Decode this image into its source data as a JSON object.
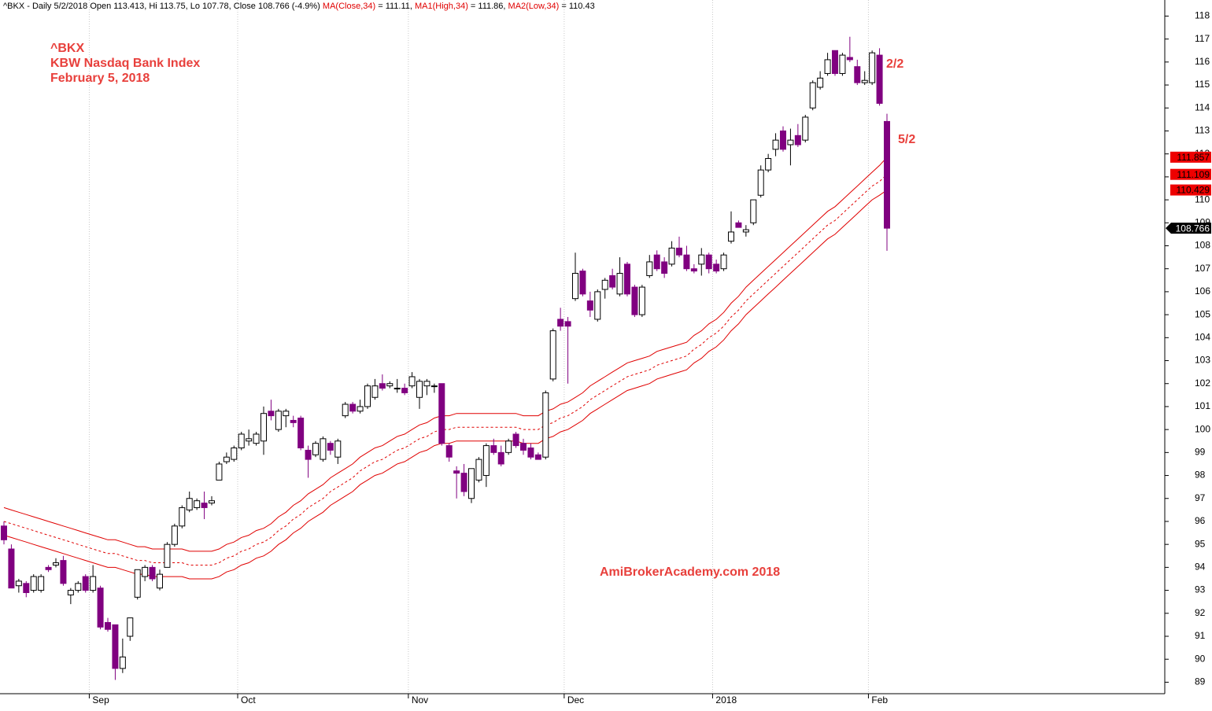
{
  "chart_data": {
    "type": "candlestick",
    "header": [
      {
        "text": "^BKX - Daily 5/2/2018 Open 113.413, Hi 113.75, Lo 107.78, Close 108.766 (-4.9%) ",
        "color": "#000000"
      },
      {
        "text": "MA(Close,34)",
        "color": "#e00000"
      },
      {
        "text": " = 111.11, ",
        "color": "#000000"
      },
      {
        "text": "MA1(High,34)",
        "color": "#e00000"
      },
      {
        "text": " = 111.86, ",
        "color": "#000000"
      },
      {
        "text": "MA2(Low,34)",
        "color": "#e00000"
      },
      {
        "text": " = 110.43",
        "color": "#000000"
      }
    ],
    "annotations": [
      "^BKX",
      "KBW Nasdaq Bank Index",
      "February 5, 2018",
      "2/2",
      "5/2",
      "AmiBrokerAcademy.com  2018"
    ],
    "categories": [
      null,
      null,
      null,
      null,
      null,
      null,
      null,
      null,
      null,
      null,
      null,
      null,
      "Sep",
      null,
      null,
      null,
      null,
      null,
      null,
      null,
      null,
      null,
      null,
      null,
      null,
      null,
      null,
      null,
      null,
      null,
      null,
      null,
      "Oct",
      null,
      null,
      null,
      null,
      null,
      null,
      null,
      null,
      null,
      null,
      null,
      null,
      null,
      null,
      null,
      null,
      null,
      null,
      null,
      null,
      null,
      null,
      "Nov",
      null,
      null,
      null,
      null,
      null,
      null,
      null,
      null,
      null,
      null,
      null,
      null,
      null,
      null,
      null,
      null,
      null,
      null,
      null,
      null,
      "Dec",
      null,
      null,
      null,
      null,
      null,
      null,
      null,
      null,
      null,
      null,
      null,
      null,
      null,
      null,
      null,
      null,
      null,
      null,
      null,
      "2018",
      null,
      null,
      null,
      null,
      null,
      null,
      null,
      null,
      null,
      null,
      null,
      null,
      null,
      null,
      null,
      null,
      null,
      null,
      null,
      null,
      "Feb",
      null,
      null
    ],
    "open": [
      95.8,
      94.8,
      93.2,
      93.3,
      93.0,
      93.0,
      94.0,
      94.1,
      94.3,
      92.8,
      93.0,
      93.6,
      93.0,
      93.1,
      91.6,
      91.5,
      89.6,
      91.0,
      92.7,
      93.6,
      94.0,
      93.1,
      94.0,
      95.0,
      95.8,
      96.5,
      96.6,
      96.8,
      96.8,
      97.8,
      98.6,
      98.7,
      99.2,
      99.5,
      99.4,
      99.5,
      100.8,
      100.0,
      100.6,
      100.4,
      100.5,
      99.1,
      98.9,
      98.7,
      99.4,
      98.8,
      100.6,
      101.1,
      100.8,
      101.0,
      101.4,
      102.0,
      101.9,
      101.8,
      101.8,
      101.9,
      101.4,
      101.9,
      101.9,
      102.0,
      99.3,
      98.2,
      98.1,
      97.0,
      97.8,
      98.0,
      99.3,
      99.0,
      99.0,
      99.8,
      99.4,
      99.2,
      98.9,
      98.8,
      102.2,
      104.8,
      104.7,
      105.7,
      106.9,
      105.6,
      104.8,
      106.1,
      106.7,
      105.9,
      107.2,
      106.2,
      105.0,
      106.7,
      107.6,
      107.3,
      107.2,
      107.9,
      107.6,
      107.0,
      107.2,
      107.6,
      107.2,
      107.0,
      108.2,
      109.0,
      108.6,
      109.0,
      110.2,
      111.3,
      112.2,
      113.0,
      112.4,
      112.8,
      112.6,
      114.0,
      114.9,
      115.5,
      116.5,
      115.5,
      116.2,
      115.8,
      115.1,
      115.1,
      116.3,
      113.413
    ],
    "high": [
      96.0,
      95.0,
      93.5,
      93.4,
      93.7,
      93.7,
      94.1,
      94.4,
      94.5,
      93.1,
      93.4,
      93.7,
      94.1,
      93.2,
      91.8,
      91.5,
      90.9,
      91.8,
      93.9,
      94.1,
      94.1,
      93.9,
      95.1,
      95.9,
      96.7,
      97.3,
      97.0,
      97.3,
      97.1,
      98.6,
      99.0,
      99.3,
      99.9,
      100.0,
      99.9,
      101.0,
      101.3,
      100.9,
      100.9,
      100.6,
      100.6,
      99.3,
      99.5,
      99.7,
      99.5,
      99.6,
      101.2,
      101.2,
      101.3,
      102.0,
      102.2,
      102.4,
      102.1,
      102.2,
      102.0,
      102.5,
      102.2,
      102.2,
      102.0,
      102.0,
      99.4,
      98.4,
      98.5,
      98.3,
      98.8,
      99.4,
      99.6,
      99.3,
      99.6,
      99.9,
      99.6,
      99.4,
      99.0,
      101.7,
      104.4,
      105.3,
      104.9,
      107.7,
      107.0,
      106.0,
      106.1,
      106.6,
      107.0,
      107.5,
      107.3,
      106.3,
      106.3,
      107.6,
      107.8,
      107.5,
      108.2,
      108.4,
      108.0,
      107.2,
      107.9,
      107.7,
      107.4,
      107.7,
      109.5,
      109.1,
      108.9,
      110.0,
      111.5,
      112.0,
      112.9,
      113.2,
      113.1,
      113.3,
      113.7,
      115.2,
      115.6,
      116.4,
      116.5,
      116.4,
      117.1,
      116.1,
      115.6,
      116.5,
      116.6,
      113.75
    ],
    "low": [
      95.0,
      93.1,
      92.9,
      92.7,
      92.9,
      92.9,
      93.8,
      94.0,
      93.2,
      92.4,
      92.9,
      92.9,
      92.9,
      91.3,
      91.2,
      89.1,
      89.4,
      90.8,
      92.6,
      93.4,
      93.4,
      93.0,
      94.0,
      94.9,
      95.7,
      96.4,
      96.5,
      96.1,
      96.7,
      97.8,
      98.5,
      98.6,
      99.1,
      99.3,
      99.3,
      98.9,
      100.4,
      99.9,
      100.1,
      100.1,
      99.1,
      97.9,
      98.8,
      98.6,
      98.9,
      98.5,
      100.5,
      100.7,
      100.7,
      100.9,
      101.3,
      101.7,
      101.8,
      101.6,
      101.5,
      101.8,
      100.9,
      101.5,
      101.6,
      99.3,
      98.6,
      97.0,
      97.1,
      96.8,
      97.7,
      97.5,
      98.9,
      98.4,
      98.9,
      99.2,
      98.9,
      98.7,
      98.7,
      98.7,
      102.1,
      104.3,
      102.0,
      105.6,
      105.8,
      104.9,
      104.7,
      105.7,
      106.1,
      105.8,
      105.8,
      104.9,
      104.9,
      106.6,
      106.9,
      106.6,
      107.1,
      107.5,
      106.9,
      106.8,
      106.7,
      106.8,
      106.8,
      106.9,
      108.1,
      108.8,
      108.4,
      108.9,
      110.1,
      111.2,
      111.9,
      112.1,
      111.5,
      112.3,
      112.5,
      113.9,
      114.8,
      115.4,
      115.4,
      115.4,
      116.0,
      115.0,
      115.0,
      115.0,
      114.1,
      107.78
    ],
    "close": [
      95.2,
      93.1,
      93.4,
      92.9,
      93.6,
      93.6,
      93.9,
      94.2,
      93.3,
      93.0,
      93.3,
      93.0,
      93.6,
      91.4,
      91.3,
      89.6,
      90.1,
      91.8,
      93.9,
      94.0,
      93.5,
      93.7,
      95.0,
      95.8,
      96.6,
      97.0,
      96.9,
      96.6,
      96.9,
      98.5,
      98.8,
      99.2,
      99.8,
      99.6,
      99.8,
      100.7,
      100.6,
      100.8,
      100.8,
      100.3,
      99.2,
      98.7,
      99.4,
      99.6,
      99.1,
      99.5,
      101.1,
      100.8,
      101.0,
      101.9,
      101.9,
      101.8,
      102.0,
      101.8,
      101.6,
      102.3,
      102.1,
      102.1,
      101.9,
      99.4,
      98.8,
      98.1,
      97.3,
      98.3,
      98.7,
      99.3,
      99.0,
      98.5,
      99.5,
      99.3,
      99.1,
      98.8,
      98.7,
      101.6,
      104.3,
      104.5,
      104.5,
      106.8,
      105.9,
      105.2,
      106.0,
      106.5,
      106.2,
      106.8,
      105.9,
      105.0,
      106.2,
      107.3,
      107.0,
      106.8,
      107.9,
      107.6,
      107.0,
      106.9,
      107.6,
      107.0,
      106.9,
      107.6,
      108.6,
      108.8,
      108.7,
      110.0,
      111.3,
      111.8,
      112.6,
      112.2,
      112.6,
      112.4,
      113.6,
      115.1,
      115.3,
      116.1,
      115.5,
      116.3,
      116.1,
      115.1,
      115.2,
      116.4,
      114.2,
      108.766
    ],
    "up_color": "#ffffff",
    "down_color": "#800080",
    "close_label": "108.766",
    "series": [
      {
        "name": "MA1(High,34)",
        "color": "#e00000",
        "dashed": false,
        "last_label": "111.857",
        "values": [
          96.6,
          96.5,
          96.4,
          96.3,
          96.2,
          96.1,
          96.0,
          95.9,
          95.8,
          95.7,
          95.6,
          95.5,
          95.4,
          95.3,
          95.2,
          95.2,
          95.1,
          95.0,
          94.9,
          94.9,
          94.8,
          94.8,
          94.8,
          94.8,
          94.8,
          94.7,
          94.7,
          94.7,
          94.7,
          94.8,
          95.0,
          95.1,
          95.3,
          95.4,
          95.6,
          95.7,
          95.9,
          96.2,
          96.4,
          96.7,
          96.9,
          97.2,
          97.4,
          97.6,
          97.9,
          98.1,
          98.3,
          98.5,
          98.8,
          99.0,
          99.2,
          99.3,
          99.5,
          99.7,
          99.8,
          100.0,
          100.2,
          100.3,
          100.5,
          100.6,
          100.6,
          100.7,
          100.7,
          100.7,
          100.7,
          100.7,
          100.7,
          100.7,
          100.7,
          100.7,
          100.6,
          100.6,
          100.6,
          100.8,
          100.9,
          101.1,
          101.2,
          101.4,
          101.6,
          101.9,
          102.1,
          102.3,
          102.5,
          102.7,
          102.9,
          103.0,
          103.1,
          103.2,
          103.4,
          103.5,
          103.6,
          103.7,
          103.8,
          104.1,
          104.3,
          104.6,
          104.8,
          105.1,
          105.5,
          105.8,
          106.2,
          106.5,
          106.8,
          107.1,
          107.4,
          107.7,
          108.0,
          108.3,
          108.6,
          108.9,
          109.2,
          109.5,
          109.7,
          110.0,
          110.3,
          110.6,
          110.9,
          111.2,
          111.5,
          111.857
        ]
      },
      {
        "name": "MA(Close,34)",
        "color": "#e00000",
        "dashed": true,
        "last_label": "111.109",
        "values": [
          96.0,
          95.9,
          95.8,
          95.7,
          95.6,
          95.5,
          95.4,
          95.3,
          95.2,
          95.1,
          95.0,
          94.9,
          94.8,
          94.7,
          94.6,
          94.6,
          94.5,
          94.4,
          94.3,
          94.3,
          94.2,
          94.2,
          94.2,
          94.2,
          94.2,
          94.1,
          94.1,
          94.1,
          94.1,
          94.2,
          94.4,
          94.5,
          94.7,
          94.8,
          95.0,
          95.1,
          95.3,
          95.6,
          95.8,
          96.1,
          96.3,
          96.6,
          96.8,
          97.0,
          97.3,
          97.5,
          97.7,
          97.9,
          98.2,
          98.4,
          98.6,
          98.7,
          98.9,
          99.1,
          99.2,
          99.4,
          99.6,
          99.7,
          99.9,
          100.0,
          100.0,
          100.1,
          100.1,
          100.1,
          100.1,
          100.1,
          100.1,
          100.1,
          100.1,
          100.1,
          100.0,
          100.0,
          100.0,
          100.2,
          100.3,
          100.5,
          100.6,
          100.8,
          101.0,
          101.3,
          101.5,
          101.7,
          101.9,
          102.1,
          102.3,
          102.4,
          102.5,
          102.6,
          102.8,
          102.9,
          103.0,
          103.1,
          103.2,
          103.5,
          103.7,
          104.0,
          104.2,
          104.5,
          104.9,
          105.2,
          105.6,
          105.9,
          106.2,
          106.5,
          106.8,
          107.1,
          107.4,
          107.7,
          108.0,
          108.3,
          108.6,
          108.9,
          109.1,
          109.4,
          109.7,
          110.0,
          110.3,
          110.6,
          110.8,
          111.109
        ]
      },
      {
        "name": "MA2(Low,34)",
        "color": "#e00000",
        "dashed": false,
        "last_label": "110.429",
        "values": [
          95.4,
          95.3,
          95.2,
          95.1,
          95.0,
          94.9,
          94.8,
          94.7,
          94.6,
          94.5,
          94.4,
          94.3,
          94.2,
          94.1,
          94.0,
          94.0,
          93.9,
          93.8,
          93.7,
          93.7,
          93.6,
          93.6,
          93.6,
          93.6,
          93.6,
          93.5,
          93.5,
          93.5,
          93.5,
          93.6,
          93.8,
          93.9,
          94.1,
          94.2,
          94.4,
          94.5,
          94.7,
          95.0,
          95.2,
          95.5,
          95.7,
          96.0,
          96.2,
          96.4,
          96.7,
          96.9,
          97.1,
          97.3,
          97.6,
          97.8,
          98.0,
          98.1,
          98.3,
          98.5,
          98.6,
          98.8,
          99.0,
          99.1,
          99.3,
          99.4,
          99.4,
          99.5,
          99.5,
          99.5,
          99.5,
          99.5,
          99.5,
          99.5,
          99.5,
          99.5,
          99.4,
          99.4,
          99.4,
          99.6,
          99.7,
          99.9,
          100.0,
          100.2,
          100.4,
          100.7,
          100.9,
          101.1,
          101.3,
          101.5,
          101.7,
          101.8,
          101.9,
          102.0,
          102.2,
          102.3,
          102.4,
          102.5,
          102.6,
          102.9,
          103.1,
          103.4,
          103.6,
          103.9,
          104.3,
          104.6,
          105.0,
          105.3,
          105.6,
          105.9,
          106.2,
          106.5,
          106.8,
          107.1,
          107.4,
          107.7,
          108.0,
          108.3,
          108.5,
          108.8,
          109.1,
          109.4,
          109.7,
          110.0,
          110.2,
          110.429
        ]
      }
    ],
    "ylim": [
      88.5,
      118.7
    ],
    "yticks": [
      89,
      90,
      91,
      92,
      93,
      94,
      95,
      96,
      97,
      98,
      99,
      100,
      101,
      102,
      103,
      104,
      105,
      106,
      107,
      108,
      109,
      110,
      111,
      112,
      113,
      114,
      115,
      116,
      117,
      118
    ],
    "grid": true
  }
}
